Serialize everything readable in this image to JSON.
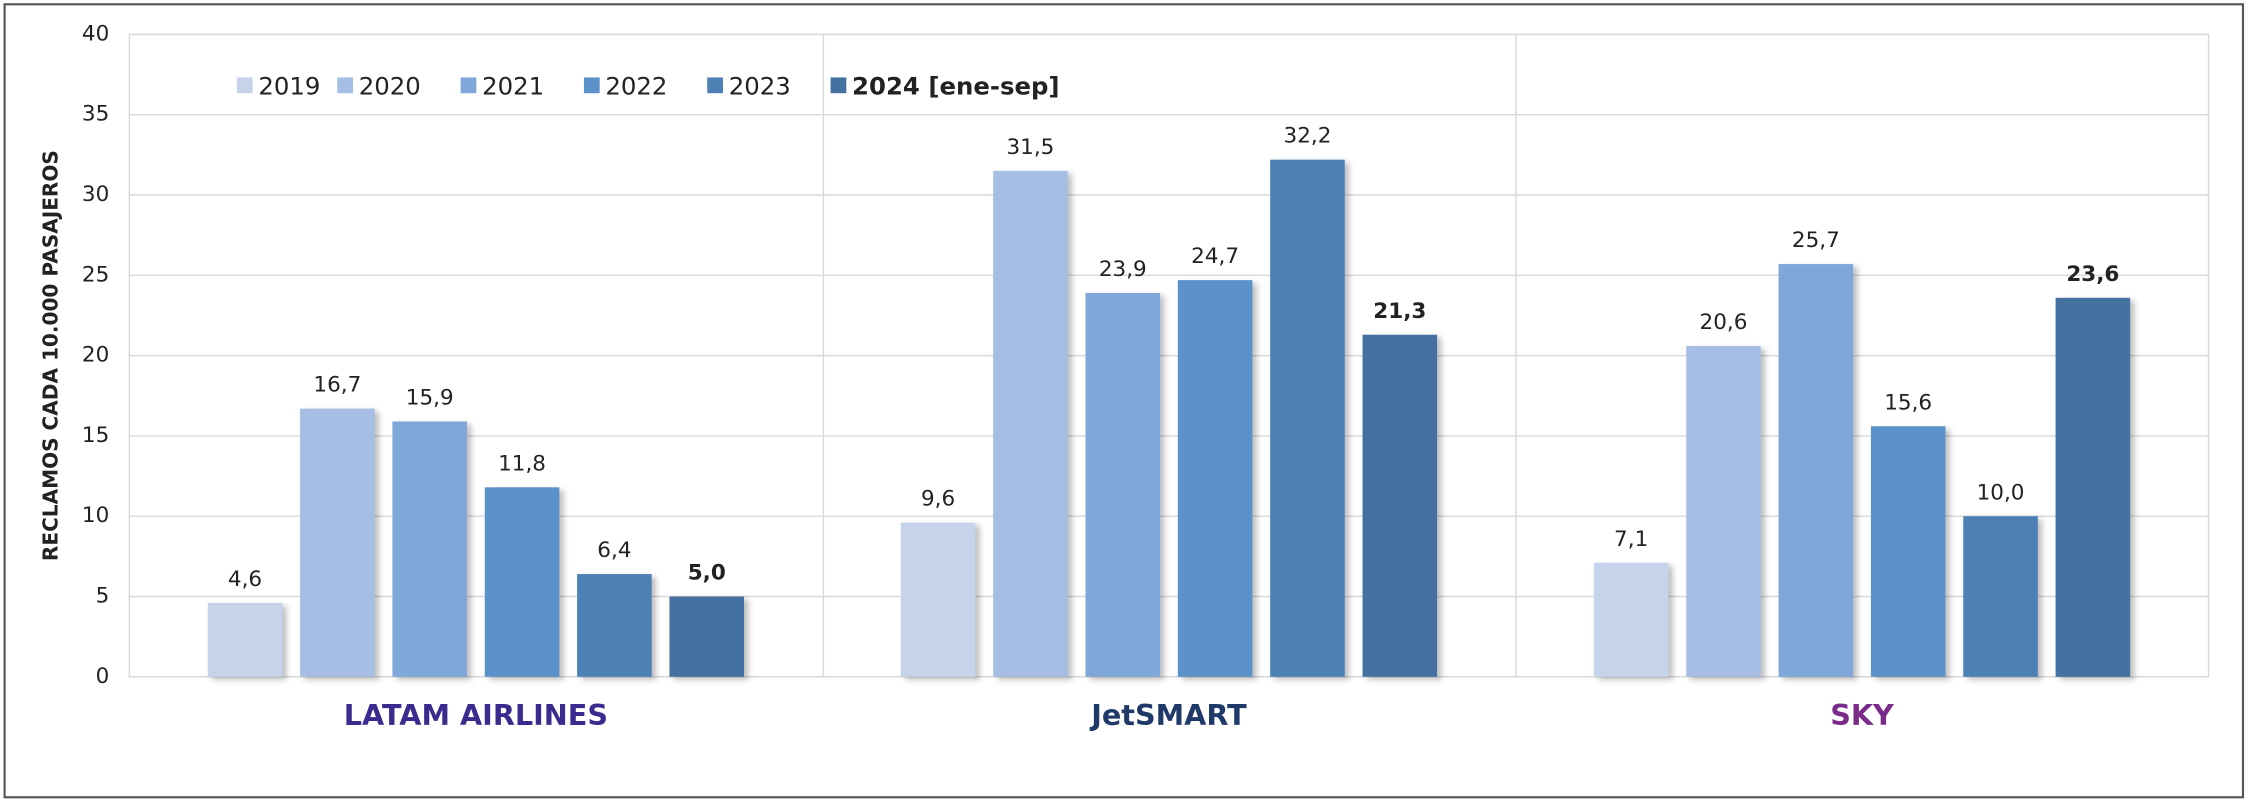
{
  "chart_data": {
    "type": "bar",
    "y_label": "RECLAMOS CADA 10.000 PASAJEROS",
    "categories": [
      "LATAM AIRLINES",
      "JetSMART",
      "SKY"
    ],
    "category_colors": [
      "#3b2b8f",
      "#1f3a68",
      "#7a2b8a"
    ],
    "series": [
      {
        "name": "2019",
        "color": "#c5d4ea",
        "values": [
          4.6,
          9.6,
          7.1
        ],
        "value_labels": [
          "4,6",
          "9,6",
          "7,1"
        ]
      },
      {
        "name": "2020",
        "color": "#a6bee3",
        "values": [
          16.7,
          31.5,
          20.6
        ],
        "value_labels": [
          "16,7",
          "31,5",
          "20,6"
        ]
      },
      {
        "name": "2021",
        "color": "#7fa7da",
        "values": [
          15.9,
          23.9,
          25.7
        ],
        "value_labels": [
          "15,9",
          "23,9",
          "25,7"
        ]
      },
      {
        "name": "2022",
        "color": "#5b92c9",
        "values": [
          11.8,
          24.7,
          15.6
        ],
        "value_labels": [
          "11,8",
          "24,7",
          "15,6"
        ]
      },
      {
        "name": "2023",
        "color": "#4d80b5",
        "values": [
          6.4,
          32.2,
          10.0
        ],
        "value_labels": [
          "6,4",
          "32,2",
          "10,0"
        ]
      },
      {
        "name": "2024 [ene-sep]",
        "color": "#44719f",
        "values": [
          5.0,
          21.3,
          23.6
        ],
        "value_labels": [
          "5,0",
          "21,3",
          "23,6"
        ],
        "bold": true
      }
    ],
    "ylim": [
      0,
      40
    ],
    "yticks": [
      0,
      5,
      10,
      15,
      20,
      25,
      30,
      35,
      40
    ],
    "grid": true,
    "legend": "top-left"
  }
}
